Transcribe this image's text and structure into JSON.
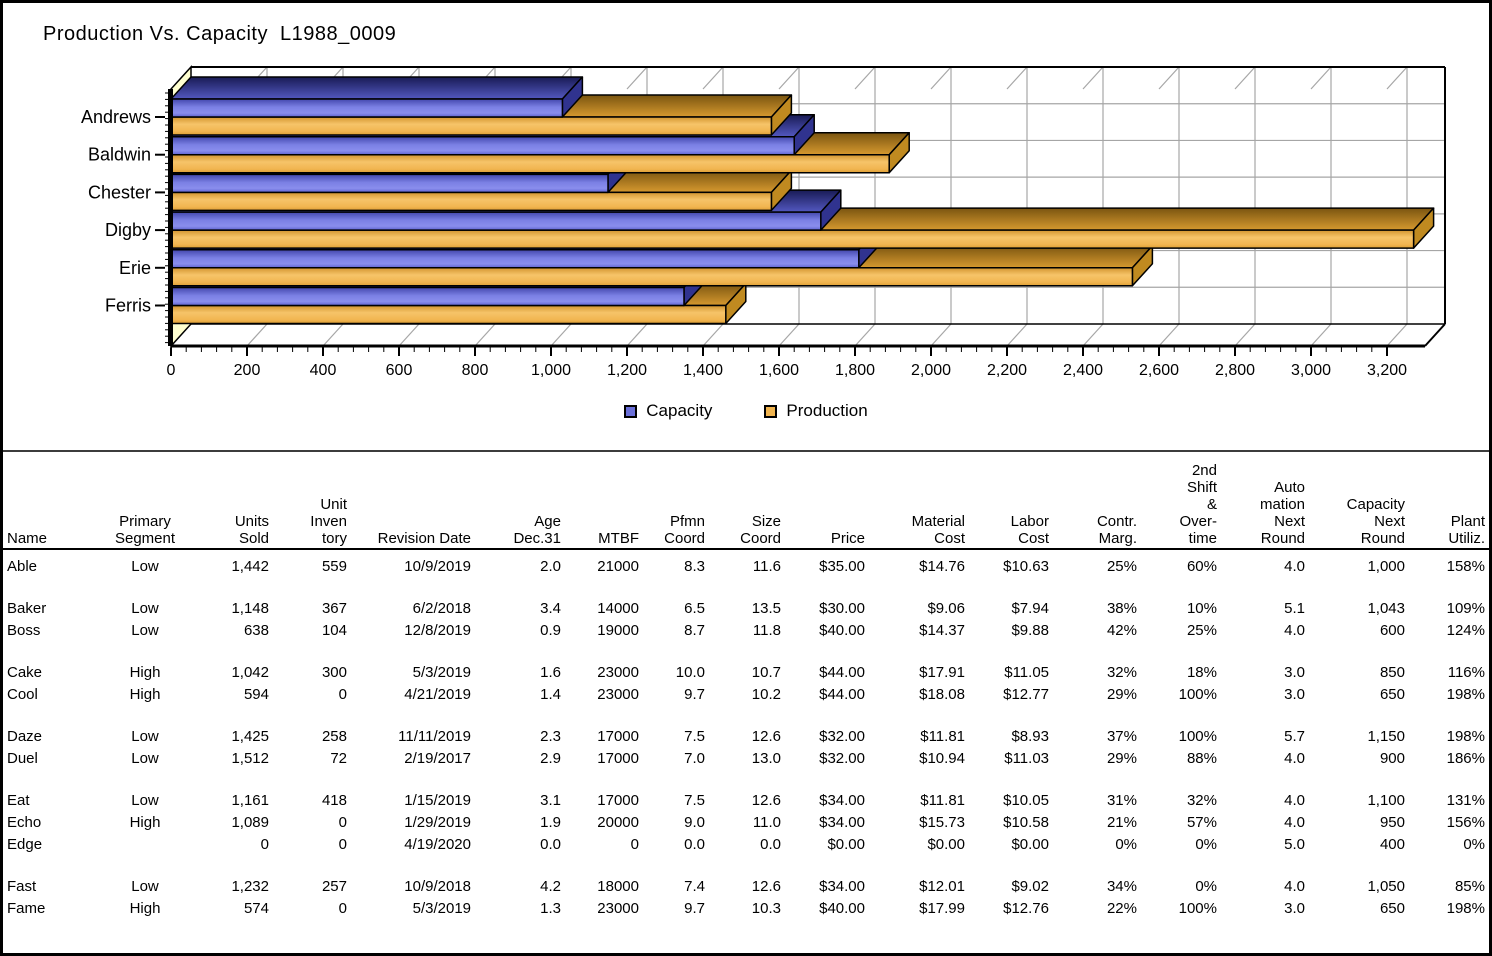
{
  "page": {
    "bg": "#ffffff",
    "border_color": "#000000",
    "divider_color": "#3c3c3c"
  },
  "chart": {
    "title": "Production Vs. Capacity  L1988_0009"
  },
  "chart_data": {
    "type": "bar",
    "orientation": "horizontal",
    "style": "3d",
    "title": "Production Vs. Capacity  L1988_0009",
    "categories": [
      "Andrews",
      "Baldwin",
      "Chester",
      "Digby",
      "Erie",
      "Ferris"
    ],
    "series": [
      {
        "name": "Capacity",
        "color": "#6a6fd8",
        "top_color": "#23255e",
        "end_color": "#30338f",
        "values": [
          1030,
          1640,
          1150,
          1710,
          1810,
          1350
        ]
      },
      {
        "name": "Production",
        "color": "#f0b44f",
        "top_color": "#7a5510",
        "end_color": "#c08a20",
        "values": [
          1580,
          1890,
          1580,
          3270,
          2530,
          1460
        ]
      }
    ],
    "xlim": [
      0,
      3330
    ],
    "x_tick_step": 200,
    "x_minor_tick_step": 40,
    "x_tick_labels": [
      "0",
      "200",
      "400",
      "600",
      "800",
      "1,000",
      "1,200",
      "1,400",
      "1,600",
      "1,800",
      "2,000",
      "2,200",
      "2,400",
      "2,600",
      "2,800",
      "3,000",
      "3,200"
    ],
    "grid": true,
    "legend_position": "bottom",
    "wall_color": "#ffffd0",
    "grid_color": "#a6a6a6"
  },
  "table": {
    "columns": [
      {
        "id": "name",
        "lines": [
          "Name"
        ],
        "align": "left"
      },
      {
        "id": "segment",
        "lines": [
          "Primary",
          "Segment"
        ],
        "align": "center"
      },
      {
        "id": "units_sold",
        "lines": [
          "Units",
          "Sold"
        ],
        "align": "right"
      },
      {
        "id": "inventory",
        "lines": [
          "Unit",
          "Inven",
          "tory"
        ],
        "align": "right"
      },
      {
        "id": "revision",
        "lines": [
          "Revision Date"
        ],
        "align": "right"
      },
      {
        "id": "age",
        "lines": [
          "Age",
          "Dec.31"
        ],
        "align": "right"
      },
      {
        "id": "mtbf",
        "lines": [
          "MTBF"
        ],
        "align": "right"
      },
      {
        "id": "pfmn",
        "lines": [
          "Pfmn",
          "Coord"
        ],
        "align": "right"
      },
      {
        "id": "size",
        "lines": [
          "Size",
          "Coord"
        ],
        "align": "right"
      },
      {
        "id": "price",
        "lines": [
          "Price"
        ],
        "align": "right"
      },
      {
        "id": "material",
        "lines": [
          "Material",
          "Cost"
        ],
        "align": "right"
      },
      {
        "id": "labor",
        "lines": [
          "Labor",
          "Cost"
        ],
        "align": "right"
      },
      {
        "id": "margin",
        "lines": [
          "Contr.",
          "Marg."
        ],
        "align": "right"
      },
      {
        "id": "overtime",
        "lines": [
          "2nd",
          "Shift",
          "&",
          "Over-",
          "time"
        ],
        "align": "right"
      },
      {
        "id": "automation",
        "lines": [
          "Auto",
          "mation",
          "Next",
          "Round"
        ],
        "align": "right"
      },
      {
        "id": "capacity",
        "lines": [
          "Capacity",
          "Next",
          "Round"
        ],
        "align": "right"
      },
      {
        "id": "utilization",
        "lines": [
          "Plant",
          "Utiliz."
        ],
        "align": "right"
      }
    ],
    "groups": [
      [
        [
          "Able",
          "Low",
          "1,442",
          "559",
          "10/9/2019",
          "2.0",
          "21000",
          "8.3",
          "11.6",
          "$35.00",
          "$14.76",
          "$10.63",
          "25%",
          "60%",
          "4.0",
          "1,000",
          "158%"
        ]
      ],
      [
        [
          "Baker",
          "Low",
          "1,148",
          "367",
          "6/2/2018",
          "3.4",
          "14000",
          "6.5",
          "13.5",
          "$30.00",
          "$9.06",
          "$7.94",
          "38%",
          "10%",
          "5.1",
          "1,043",
          "109%"
        ],
        [
          "Boss",
          "Low",
          "638",
          "104",
          "12/8/2019",
          "0.9",
          "19000",
          "8.7",
          "11.8",
          "$40.00",
          "$14.37",
          "$9.88",
          "42%",
          "25%",
          "4.0",
          "600",
          "124%"
        ]
      ],
      [
        [
          "Cake",
          "High",
          "1,042",
          "300",
          "5/3/2019",
          "1.6",
          "23000",
          "10.0",
          "10.7",
          "$44.00",
          "$17.91",
          "$11.05",
          "32%",
          "18%",
          "3.0",
          "850",
          "116%"
        ],
        [
          "Cool",
          "High",
          "594",
          "0",
          "4/21/2019",
          "1.4",
          "23000",
          "9.7",
          "10.2",
          "$44.00",
          "$18.08",
          "$12.77",
          "29%",
          "100%",
          "3.0",
          "650",
          "198%"
        ]
      ],
      [
        [
          "Daze",
          "Low",
          "1,425",
          "258",
          "11/11/2019",
          "2.3",
          "17000",
          "7.5",
          "12.6",
          "$32.00",
          "$11.81",
          "$8.93",
          "37%",
          "100%",
          "5.7",
          "1,150",
          "198%"
        ],
        [
          "Duel",
          "Low",
          "1,512",
          "72",
          "2/19/2017",
          "2.9",
          "17000",
          "7.0",
          "13.0",
          "$32.00",
          "$10.94",
          "$11.03",
          "29%",
          "88%",
          "4.0",
          "900",
          "186%"
        ]
      ],
      [
        [
          "Eat",
          "Low",
          "1,161",
          "418",
          "1/15/2019",
          "3.1",
          "17000",
          "7.5",
          "12.6",
          "$34.00",
          "$11.81",
          "$10.05",
          "31%",
          "32%",
          "4.0",
          "1,100",
          "131%"
        ],
        [
          "Echo",
          "High",
          "1,089",
          "0",
          "1/29/2019",
          "1.9",
          "20000",
          "9.0",
          "11.0",
          "$34.00",
          "$15.73",
          "$10.58",
          "21%",
          "57%",
          "4.0",
          "950",
          "156%"
        ],
        [
          "Edge",
          "",
          "0",
          "0",
          "4/19/2020",
          "0.0",
          "0",
          "0.0",
          "0.0",
          "$0.00",
          "$0.00",
          "$0.00",
          "0%",
          "0%",
          "5.0",
          "400",
          "0%"
        ]
      ],
      [
        [
          "Fast",
          "Low",
          "1,232",
          "257",
          "10/9/2018",
          "4.2",
          "18000",
          "7.4",
          "12.6",
          "$34.00",
          "$12.01",
          "$9.02",
          "34%",
          "0%",
          "4.0",
          "1,050",
          "85%"
        ],
        [
          "Fame",
          "High",
          "574",
          "0",
          "5/3/2019",
          "1.3",
          "23000",
          "9.7",
          "10.3",
          "$40.00",
          "$17.99",
          "$12.76",
          "22%",
          "100%",
          "3.0",
          "650",
          "198%"
        ]
      ]
    ]
  }
}
